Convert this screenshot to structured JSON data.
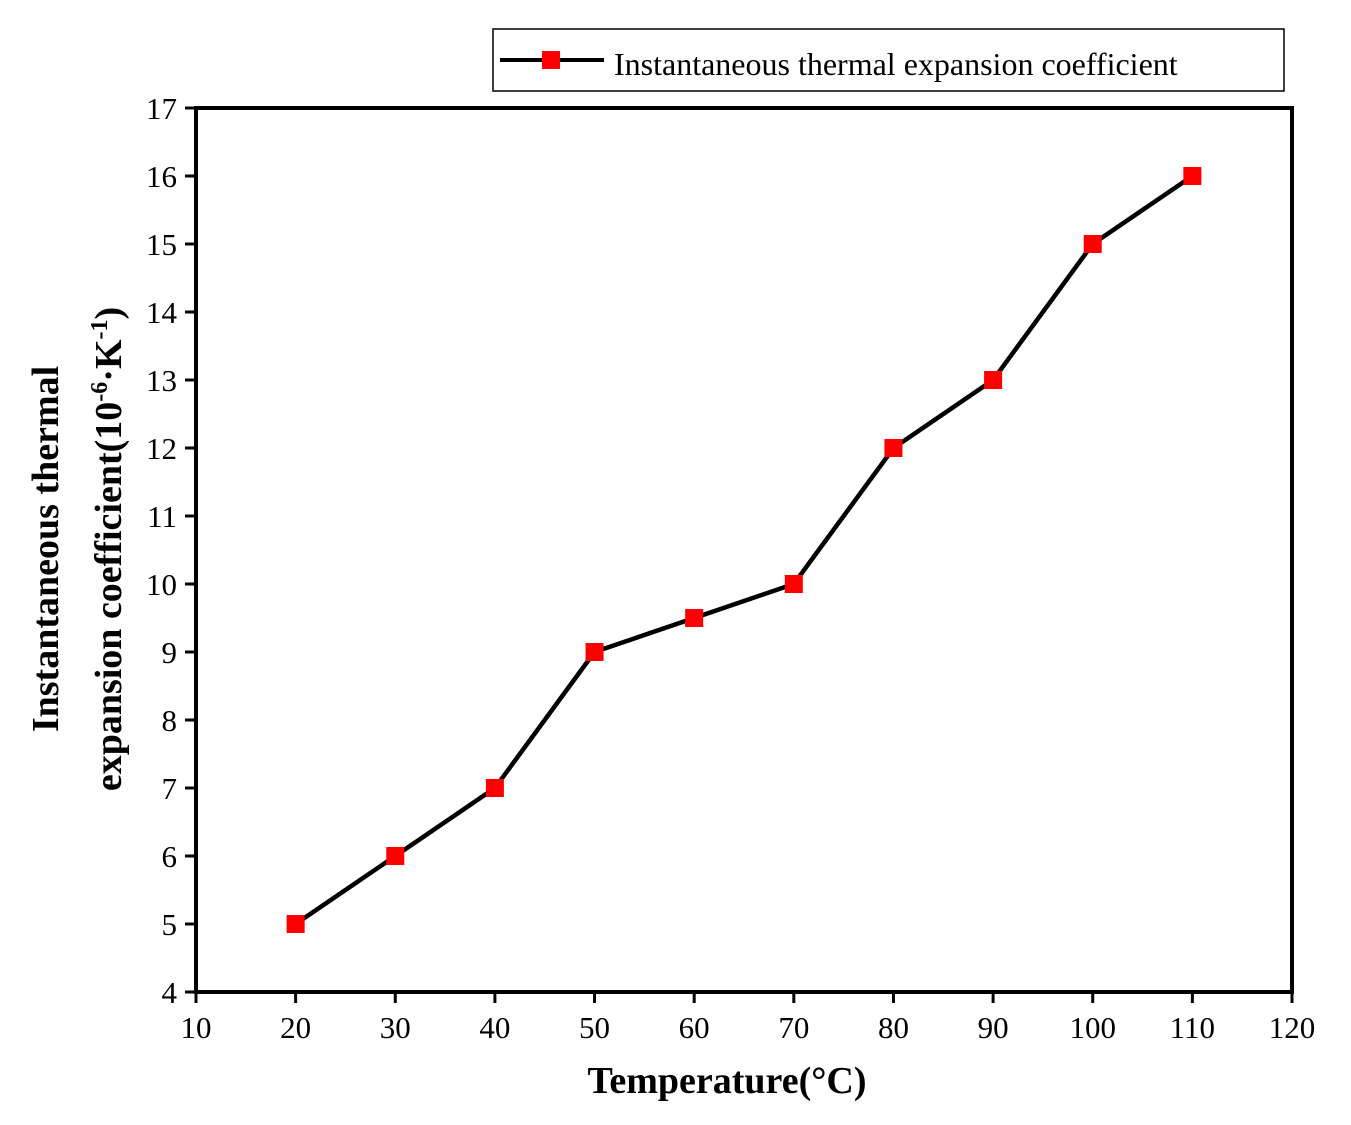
{
  "chart_data": {
    "type": "line",
    "title": "",
    "xlabel": "Temperature(°C)",
    "ylabel": {
      "line1": "Instantaneous thermal",
      "line2_prefix": "expansion coefficient(10",
      "line2_sup1": "-6",
      "line2_mid": "·K",
      "line2_sup2": "-1",
      "line2_suffix": ")"
    },
    "xlim": [
      10,
      120
    ],
    "ylim": [
      4,
      17
    ],
    "xticks": [
      10,
      20,
      30,
      40,
      50,
      60,
      70,
      80,
      90,
      100,
      110,
      120
    ],
    "yticks": [
      4,
      5,
      6,
      7,
      8,
      9,
      10,
      11,
      12,
      13,
      14,
      15,
      16,
      17
    ],
    "grid": false,
    "legend_position": "top-right",
    "series": [
      {
        "name": "Instantaneous thermal expansion coefficient",
        "line_color": "#000000",
        "marker": "square",
        "marker_color": "#ff0000",
        "x": [
          20,
          30,
          40,
          50,
          60,
          70,
          80,
          90,
          100,
          110
        ],
        "y": [
          5,
          6,
          7,
          9,
          9.5,
          10,
          12,
          13,
          15,
          16
        ]
      }
    ]
  }
}
